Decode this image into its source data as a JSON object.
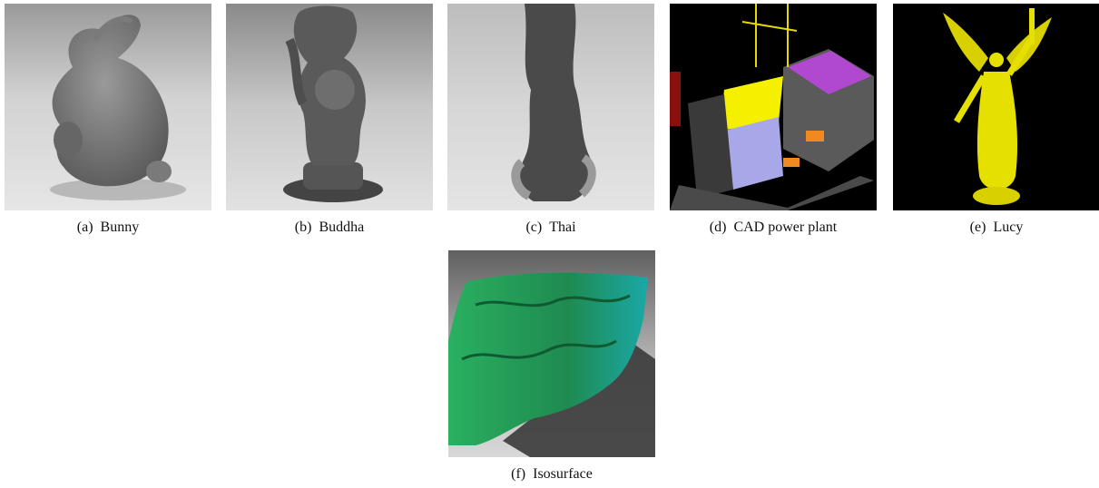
{
  "figure": {
    "panels": [
      {
        "id": "bunny",
        "tag": "(a)",
        "label": "Bunny"
      },
      {
        "id": "buddha",
        "tag": "(b)",
        "label": "Buddha"
      },
      {
        "id": "thai",
        "tag": "(c)",
        "label": "Thai"
      },
      {
        "id": "cad",
        "tag": "(d)",
        "label": "CAD power plant"
      },
      {
        "id": "lucy",
        "tag": "(e)",
        "label": "Lucy"
      },
      {
        "id": "iso",
        "tag": "(f)",
        "label": "Isosurface"
      }
    ]
  },
  "colors": {
    "gray_model": "#5e5e5e",
    "lucy_yellow": "#e6e000",
    "iso_green": "#1f9a5a",
    "iso_teal": "#1aa8a8",
    "cad_purple": "#a8a8e8",
    "cad_magenta": "#c040e0",
    "cad_yellow": "#f4f000",
    "cad_orange": "#f08a20"
  }
}
